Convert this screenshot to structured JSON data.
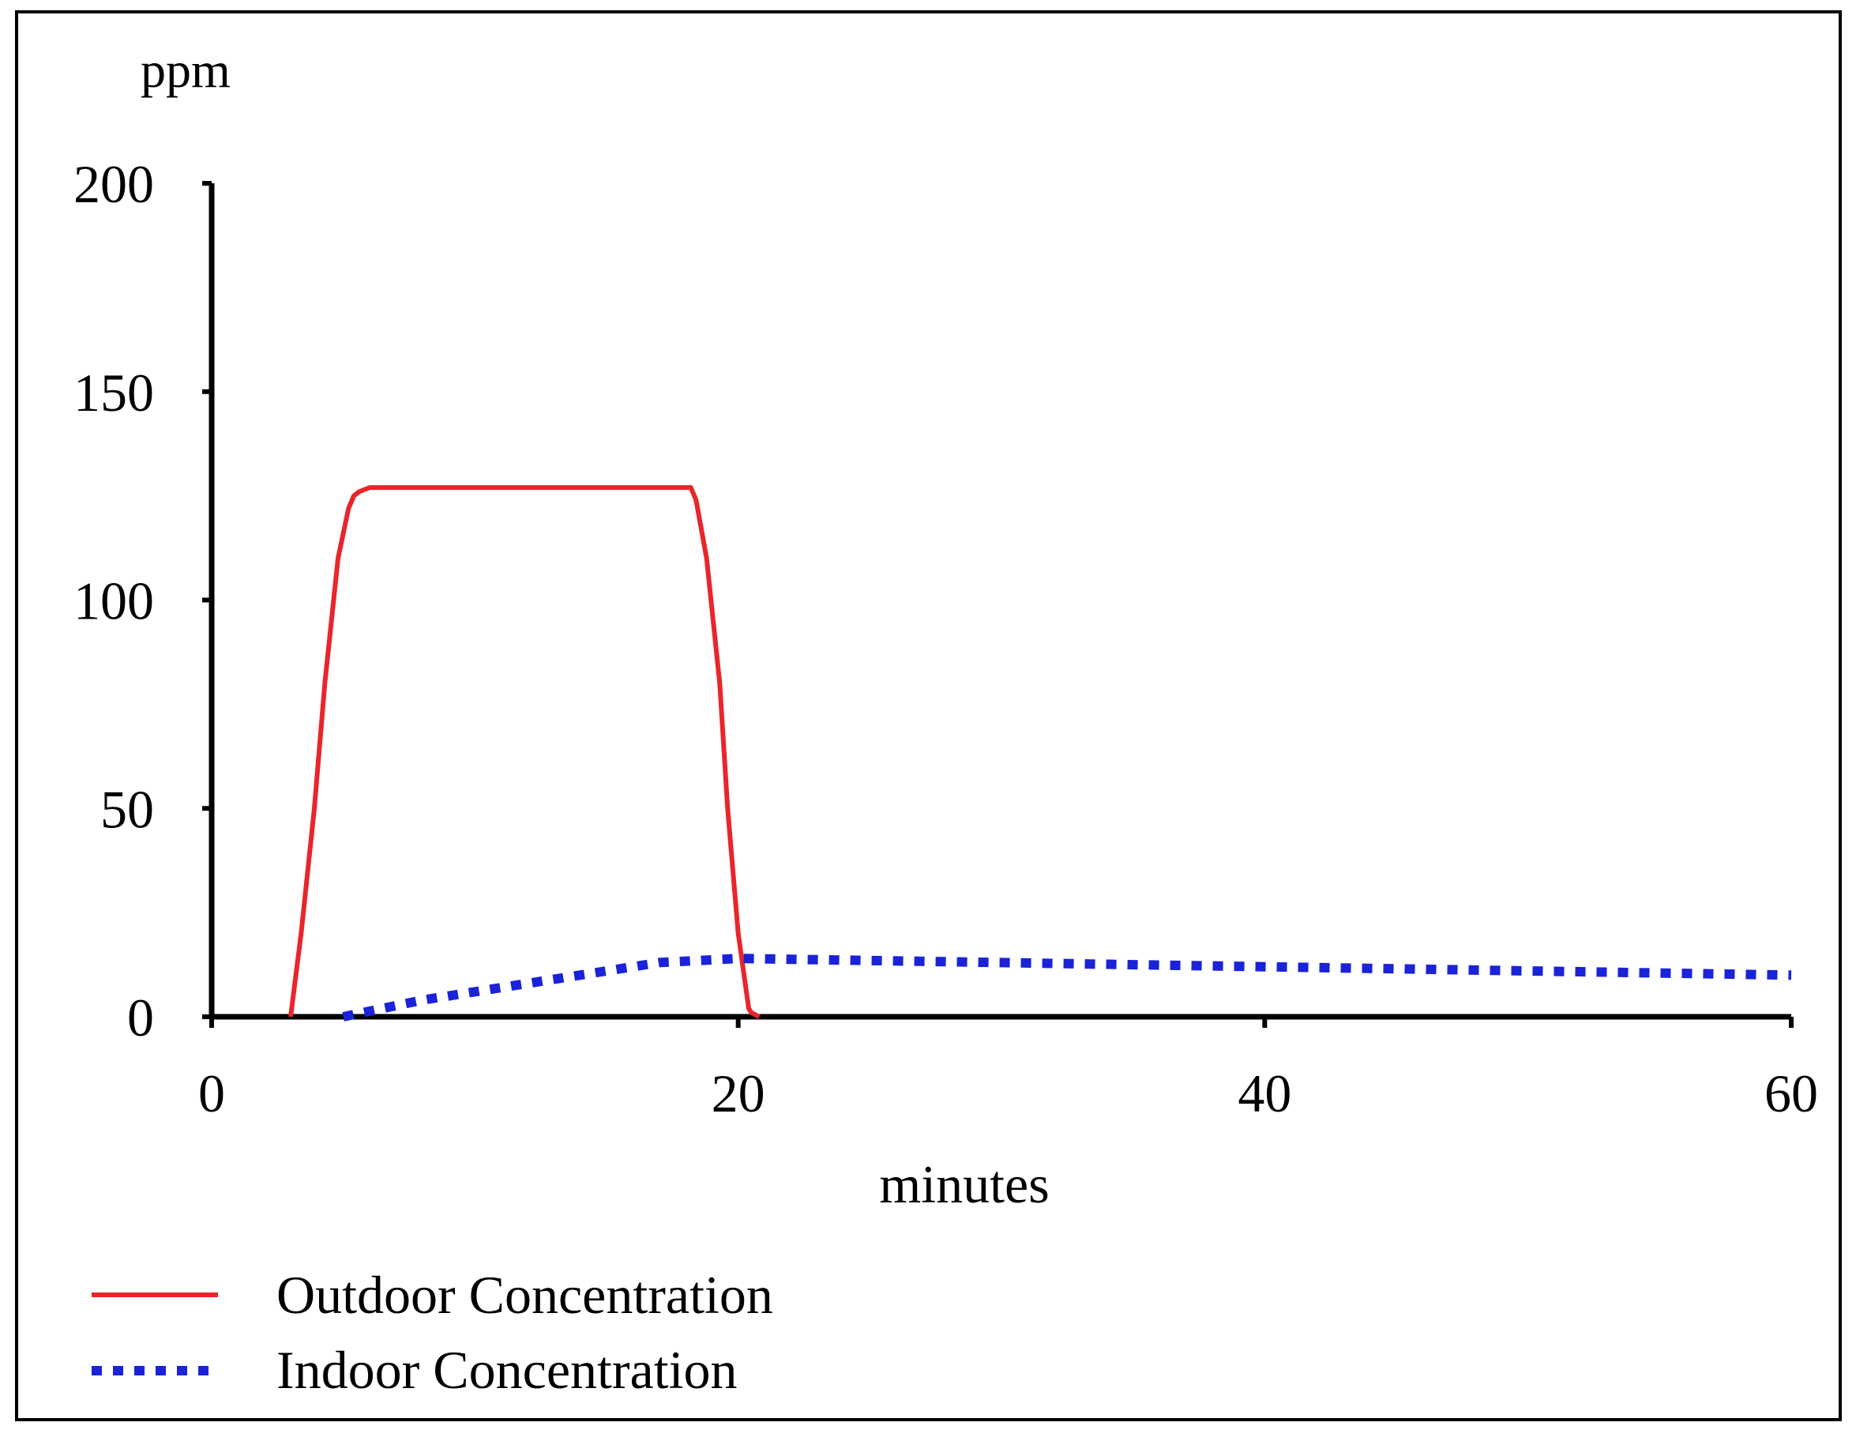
{
  "chart_data": {
    "type": "line",
    "title": "",
    "xlabel": "minutes",
    "ylabel": "ppm",
    "xlim": [
      0,
      60
    ],
    "ylim": [
      0,
      200
    ],
    "xticks": [
      0,
      20,
      40,
      60
    ],
    "yticks": [
      0,
      50,
      100,
      150,
      200
    ],
    "xtick_labels": [
      "0",
      "20",
      "40",
      "60"
    ],
    "ytick_labels": [
      "0",
      "50",
      "100",
      "150",
      "200"
    ],
    "grid": false,
    "legend_position": "bottom-left",
    "series": [
      {
        "name": "Outdoor Concentration",
        "color": "#e8262a",
        "style": "solid",
        "x": [
          3,
          3.4,
          3.9,
          4.3,
          4.8,
          5.2,
          5.4,
          5.6,
          6.0,
          10,
          15,
          18.2,
          18.4,
          18.8,
          19.3,
          19.6,
          20.0,
          20.4,
          20.5,
          20.8
        ],
        "y": [
          0,
          20,
          50,
          80,
          110,
          122,
          125,
          126,
          127,
          127,
          127,
          127,
          124,
          110,
          80,
          50,
          20,
          2,
          1,
          0
        ]
      },
      {
        "name": "Indoor Concentration",
        "color": "#1a23d8",
        "style": "dotted",
        "x": [
          5,
          8,
          12,
          15,
          17,
          20,
          25,
          30,
          35,
          40,
          45,
          50,
          55,
          60
        ],
        "y": [
          0,
          4,
          8,
          11,
          13,
          14,
          13.5,
          13,
          12.5,
          12,
          11.5,
          11,
          10.5,
          10
        ]
      }
    ]
  }
}
